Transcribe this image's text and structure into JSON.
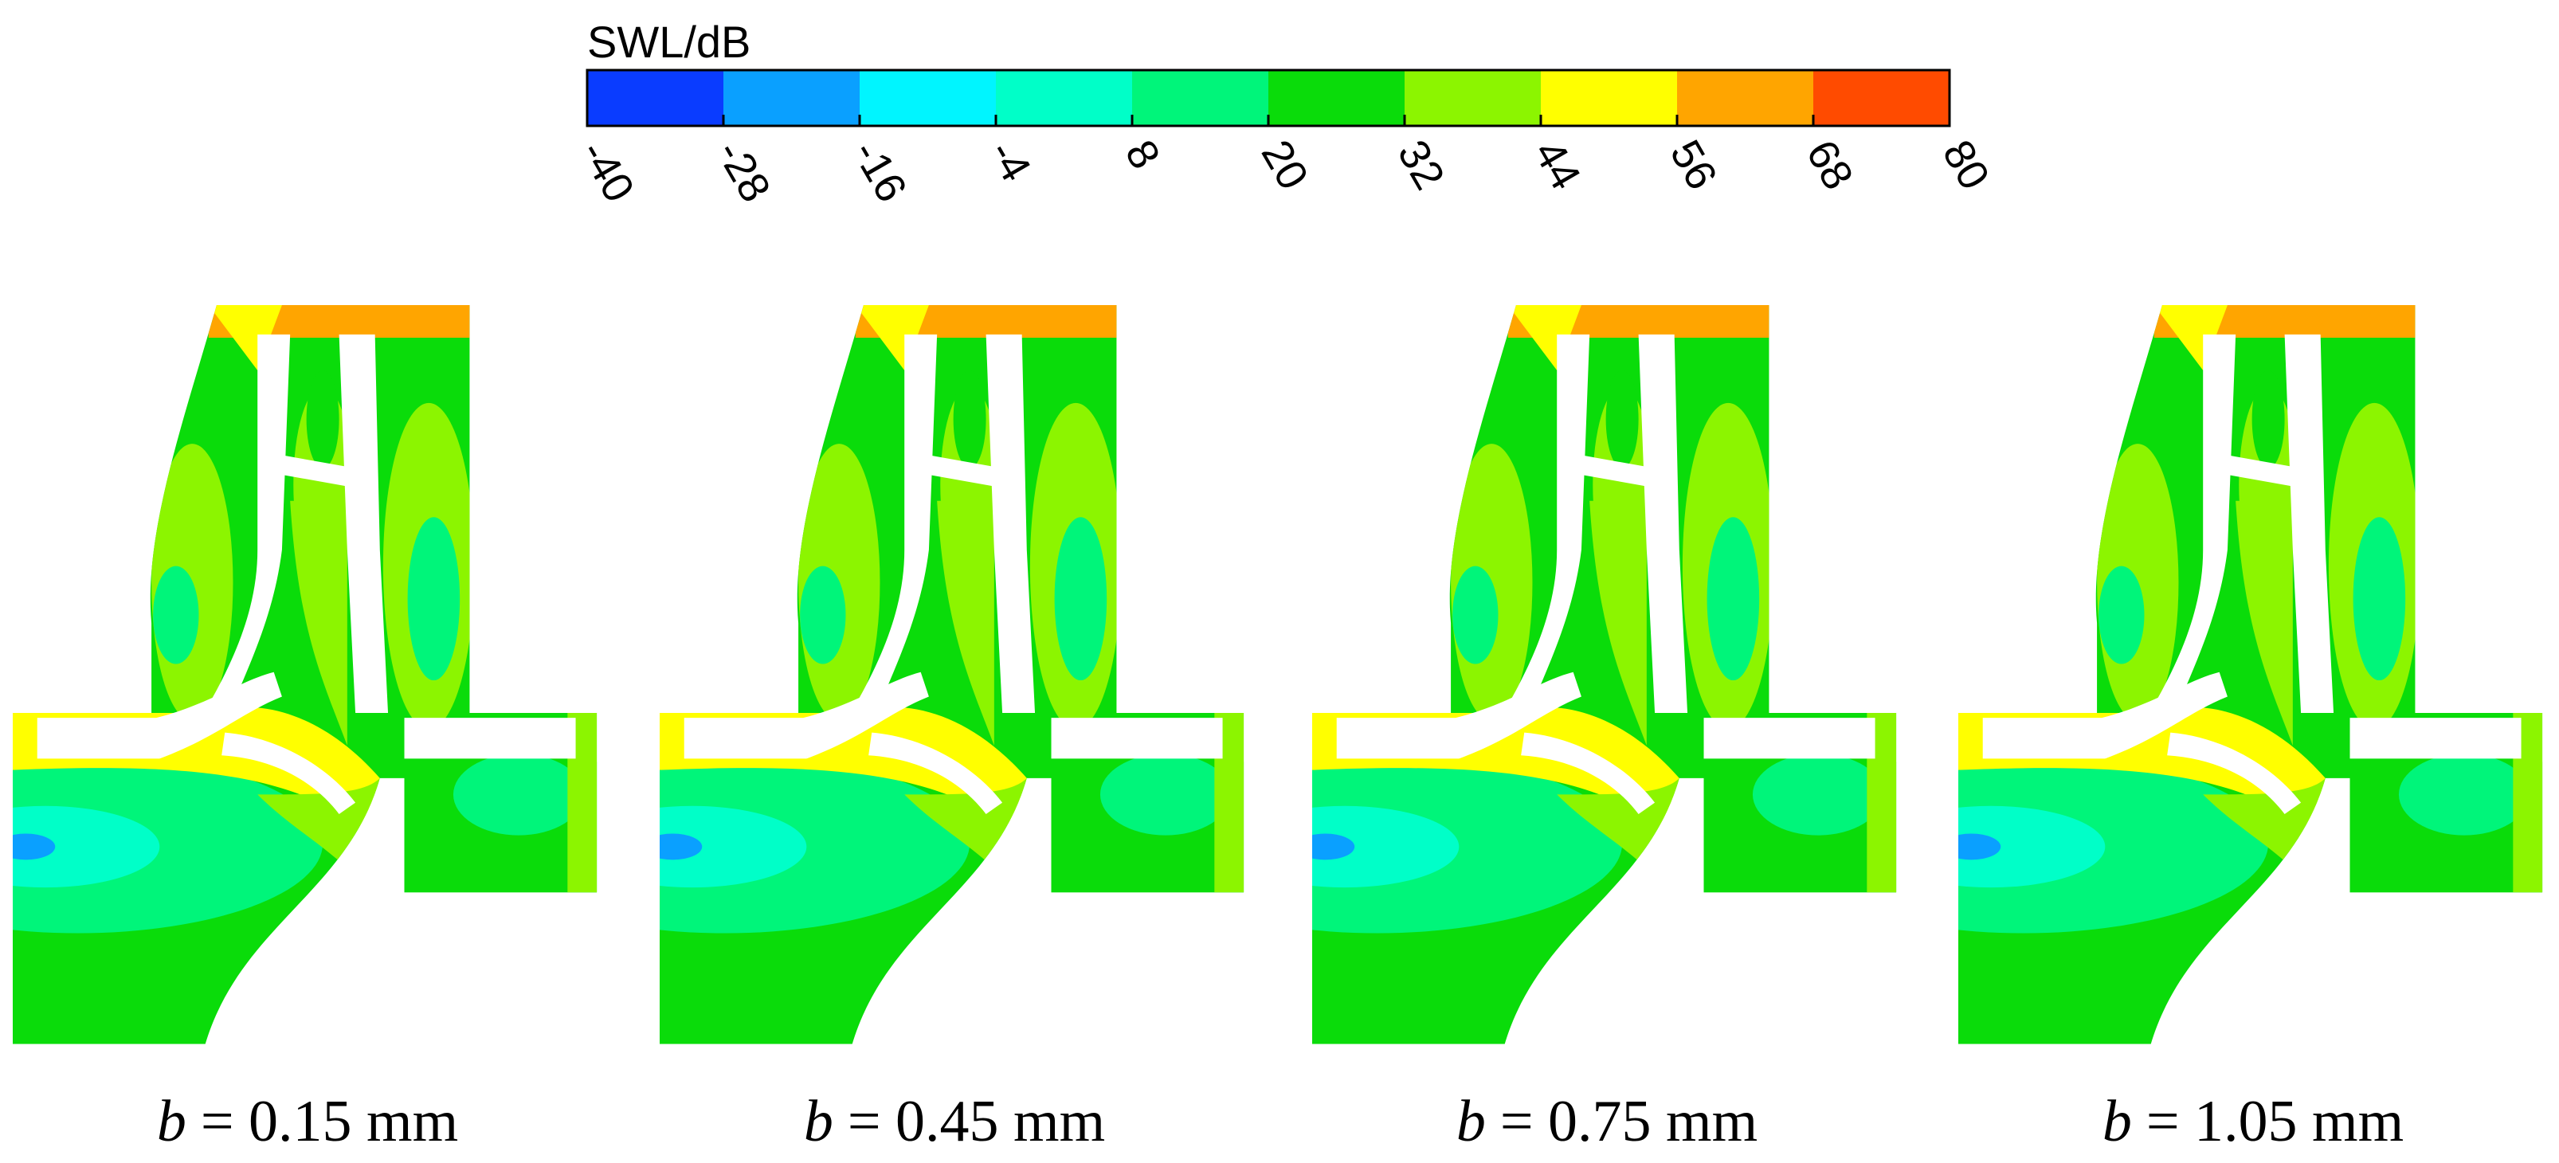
{
  "colorbar": {
    "title": "SWL/dB",
    "ticks": [
      -40,
      -28,
      -16,
      -4,
      8,
      20,
      32,
      44,
      56,
      68,
      80
    ],
    "colors": [
      "#0a3cff",
      "#0aa0ff",
      "#00f5ff",
      "#00ffc8",
      "#00f57a",
      "#0adc0a",
      "#8cf500",
      "#ffff00",
      "#ffa500",
      "#ff4b00"
    ]
  },
  "panels": [
    {
      "variable": "b",
      "text": "= 0.15 mm"
    },
    {
      "variable": "b",
      "text": "= 0.45 mm"
    },
    {
      "variable": "b",
      "text": "= 0.75 mm"
    },
    {
      "variable": "b",
      "text": "= 1.05 mm"
    }
  ]
}
